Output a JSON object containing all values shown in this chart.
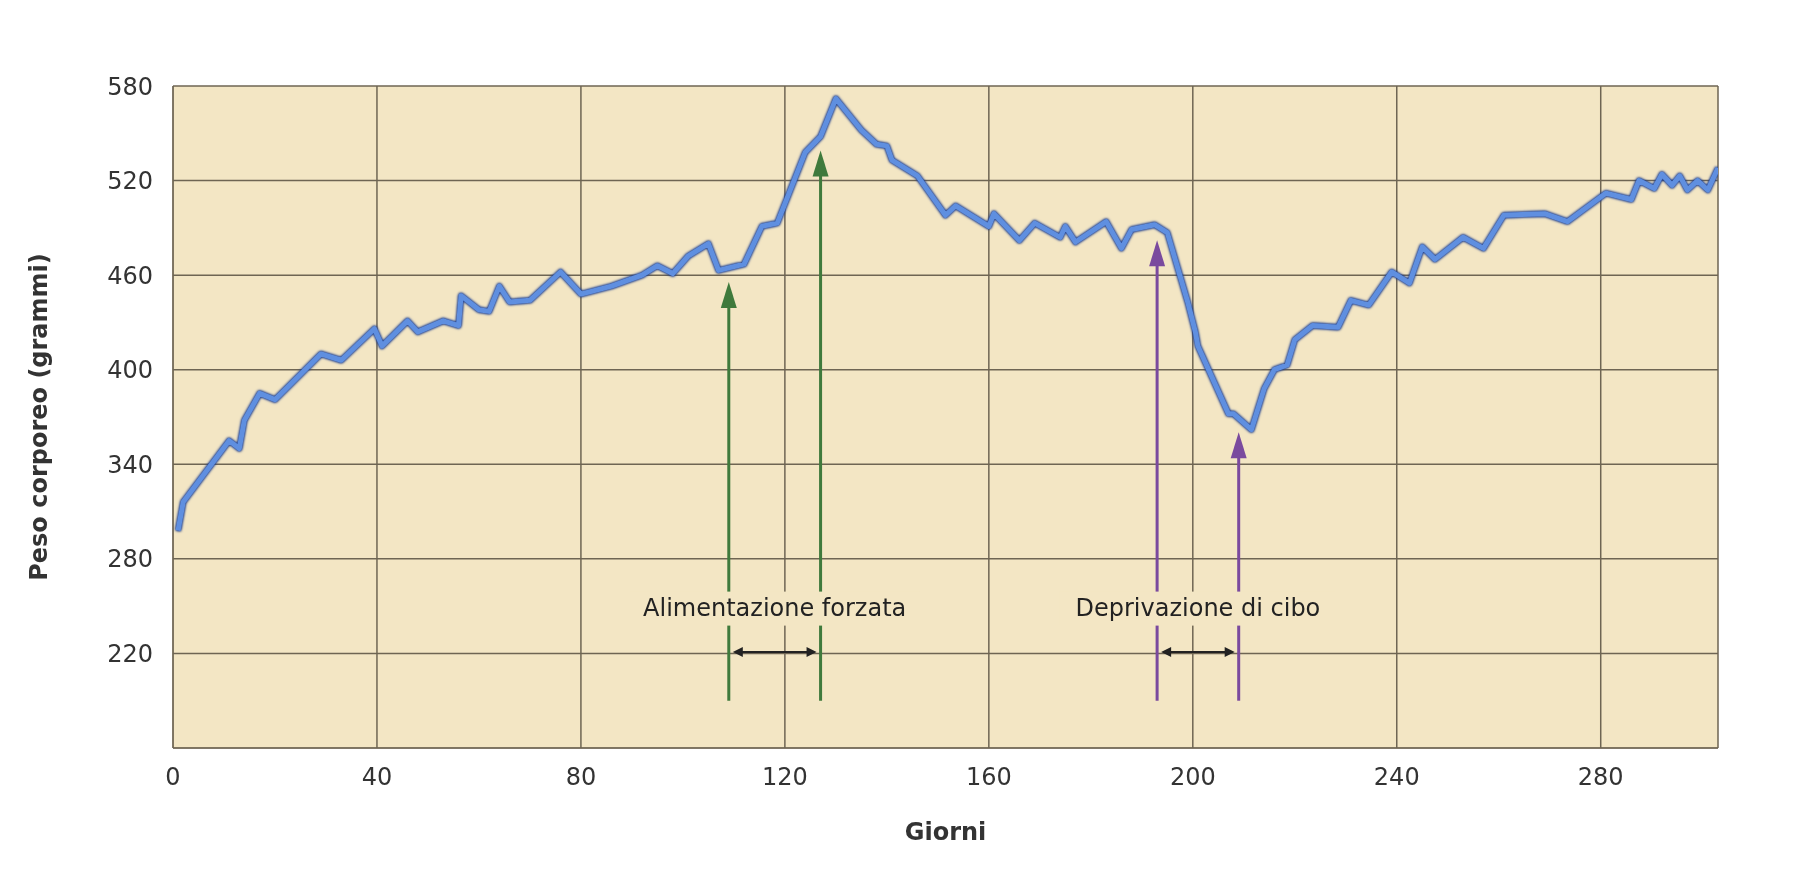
{
  "chart_data": {
    "type": "line",
    "xlabel": "Giorni",
    "ylabel": "Peso corporeo (grammi)",
    "color": "#5f8fe0",
    "grid": true,
    "xlim": [
      0,
      303
    ],
    "ylim": [
      160,
      580
    ],
    "xticks": [
      0,
      40,
      80,
      120,
      160,
      200,
      240,
      280
    ],
    "yticks": [
      220,
      280,
      340,
      400,
      460,
      520,
      580
    ],
    "x": [
      1,
      2,
      11,
      13,
      14,
      17,
      20,
      29,
      33,
      39.5,
      41,
      46,
      48,
      53,
      56,
      56.5,
      60,
      62,
      64,
      66,
      70,
      76,
      80,
      86,
      92,
      95,
      98,
      101,
      105,
      107,
      112,
      115.5,
      118.5,
      124,
      127,
      130,
      135,
      138,
      140,
      141,
      146,
      151.5,
      153.5,
      160,
      161,
      166,
      169,
      174,
      175,
      177,
      183,
      186,
      188,
      192.5,
      195,
      199,
      200.5,
      201,
      207,
      208,
      211.5,
      214,
      216,
      218.5,
      220,
      223.5,
      228.5,
      231,
      234.5,
      239,
      242.5,
      245,
      247.5,
      253,
      257,
      261,
      269,
      273.5,
      281,
      286,
      287.5,
      290.5,
      292,
      294,
      295.5,
      297,
      299,
      301,
      303
    ],
    "values": [
      298,
      316,
      355,
      350,
      368,
      385,
      381,
      410,
      406,
      426,
      415,
      431,
      424,
      431,
      428,
      447,
      438,
      437,
      453,
      443,
      444,
      462,
      448,
      453,
      460,
      466,
      461,
      472,
      480,
      463,
      467,
      491,
      493,
      538,
      548,
      572,
      552,
      543,
      542,
      533,
      523,
      498,
      504,
      491,
      499,
      482,
      493,
      484,
      491,
      481,
      494,
      477,
      489,
      492,
      487,
      443,
      424,
      415,
      372,
      372,
      362,
      388,
      400,
      403,
      419,
      428,
      427,
      444,
      441,
      462,
      455,
      478,
      470,
      484,
      477,
      498,
      499,
      494,
      512,
      508,
      520,
      515,
      524,
      517,
      523,
      514,
      520,
      514,
      528
    ],
    "ref_lines": [
      {
        "axis": "x",
        "value": 109,
        "color": "#3f7a3c"
      },
      {
        "axis": "x",
        "value": 127,
        "color": "#3f7a3c"
      },
      {
        "axis": "x",
        "value": 193,
        "color": "#7a4a9e"
      },
      {
        "axis": "x",
        "value": 209,
        "color": "#7a4a9e"
      }
    ],
    "annotations": [
      "Alimentazione forzata",
      "Deprivazione di cibo"
    ]
  }
}
